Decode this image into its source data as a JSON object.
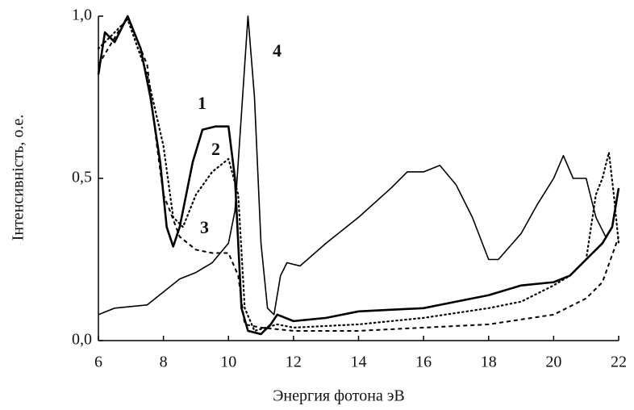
{
  "chart_data": {
    "type": "line",
    "xlabel": "Энергия фотона эВ",
    "ylabel": "Інтенсивність, о.е.",
    "xlim": [
      6,
      22
    ],
    "xticks": [
      6,
      8,
      10,
      12,
      14,
      16,
      18,
      20,
      22
    ],
    "ylim": [
      0,
      1
    ],
    "yticks": [
      {
        "value": 0,
        "label": "0,0"
      },
      {
        "value": 0.5,
        "label": "0,5"
      },
      {
        "value": 1,
        "label": "1,0"
      }
    ],
    "series": [
      {
        "name": "1",
        "color": "#000",
        "style": "solid",
        "x": [
          6,
          6.2,
          6.5,
          6.9,
          7.3,
          7.6,
          7.9,
          8.1,
          8.3,
          8.5,
          8.9,
          9.2,
          9.6,
          10.0,
          10.2,
          10.4,
          10.6,
          11.0,
          11.3,
          11.5,
          12,
          13,
          14,
          16,
          17,
          18,
          19,
          20,
          20.5,
          21,
          21.5,
          21.8,
          22
        ],
        "values": [
          0.82,
          0.95,
          0.92,
          1.0,
          0.9,
          0.75,
          0.55,
          0.35,
          0.29,
          0.35,
          0.55,
          0.65,
          0.66,
          0.66,
          0.5,
          0.1,
          0.03,
          0.02,
          0.05,
          0.08,
          0.06,
          0.07,
          0.09,
          0.1,
          0.12,
          0.14,
          0.17,
          0.18,
          0.2,
          0.25,
          0.3,
          0.35,
          0.47
        ]
      },
      {
        "name": "2",
        "color": "#000",
        "style": "dotted",
        "x": [
          6,
          6.9,
          7.5,
          8.0,
          8.3,
          8.6,
          9.0,
          9.5,
          10.0,
          10.3,
          10.5,
          10.8,
          11.5,
          12,
          14,
          16,
          18,
          19,
          20,
          20.5,
          21,
          21.3,
          21.5,
          21.7,
          21.85,
          22
        ],
        "values": [
          0.9,
          0.99,
          0.82,
          0.6,
          0.38,
          0.35,
          0.45,
          0.52,
          0.56,
          0.45,
          0.1,
          0.03,
          0.05,
          0.04,
          0.05,
          0.07,
          0.1,
          0.12,
          0.17,
          0.2,
          0.25,
          0.45,
          0.5,
          0.58,
          0.45,
          0.3
        ]
      },
      {
        "name": "3",
        "color": "#000",
        "style": "dashed",
        "x": [
          6,
          6.9,
          7.5,
          7.8,
          8.0,
          8.2,
          8.5,
          9.0,
          9.5,
          10.0,
          10.3,
          10.5,
          11,
          12,
          14,
          16,
          18,
          20,
          21,
          21.5,
          22
        ],
        "values": [
          0.85,
          1.0,
          0.85,
          0.6,
          0.45,
          0.4,
          0.32,
          0.28,
          0.27,
          0.27,
          0.2,
          0.05,
          0.04,
          0.03,
          0.03,
          0.04,
          0.05,
          0.08,
          0.13,
          0.18,
          0.32
        ]
      },
      {
        "name": "4",
        "color": "#000",
        "style": "thin",
        "x": [
          6,
          6.5,
          7.5,
          8.0,
          8.5,
          9.0,
          9.5,
          10.0,
          10.2,
          10.4,
          10.6,
          10.8,
          11.0,
          11.2,
          11.4,
          11.6,
          11.8,
          12.2,
          13,
          14,
          15,
          15.5,
          16,
          16.5,
          17,
          17.5,
          18,
          18.3,
          19,
          19.5,
          20,
          20.3,
          20.6,
          21,
          21.3,
          21.6,
          21.8,
          22
        ],
        "values": [
          0.08,
          0.1,
          0.11,
          0.15,
          0.19,
          0.21,
          0.24,
          0.3,
          0.4,
          0.7,
          1.0,
          0.75,
          0.3,
          0.1,
          0.08,
          0.2,
          0.24,
          0.23,
          0.3,
          0.38,
          0.47,
          0.52,
          0.52,
          0.54,
          0.48,
          0.38,
          0.25,
          0.25,
          0.33,
          0.42,
          0.5,
          0.57,
          0.5,
          0.5,
          0.38,
          0.32,
          0.35,
          0.47
        ]
      }
    ]
  }
}
